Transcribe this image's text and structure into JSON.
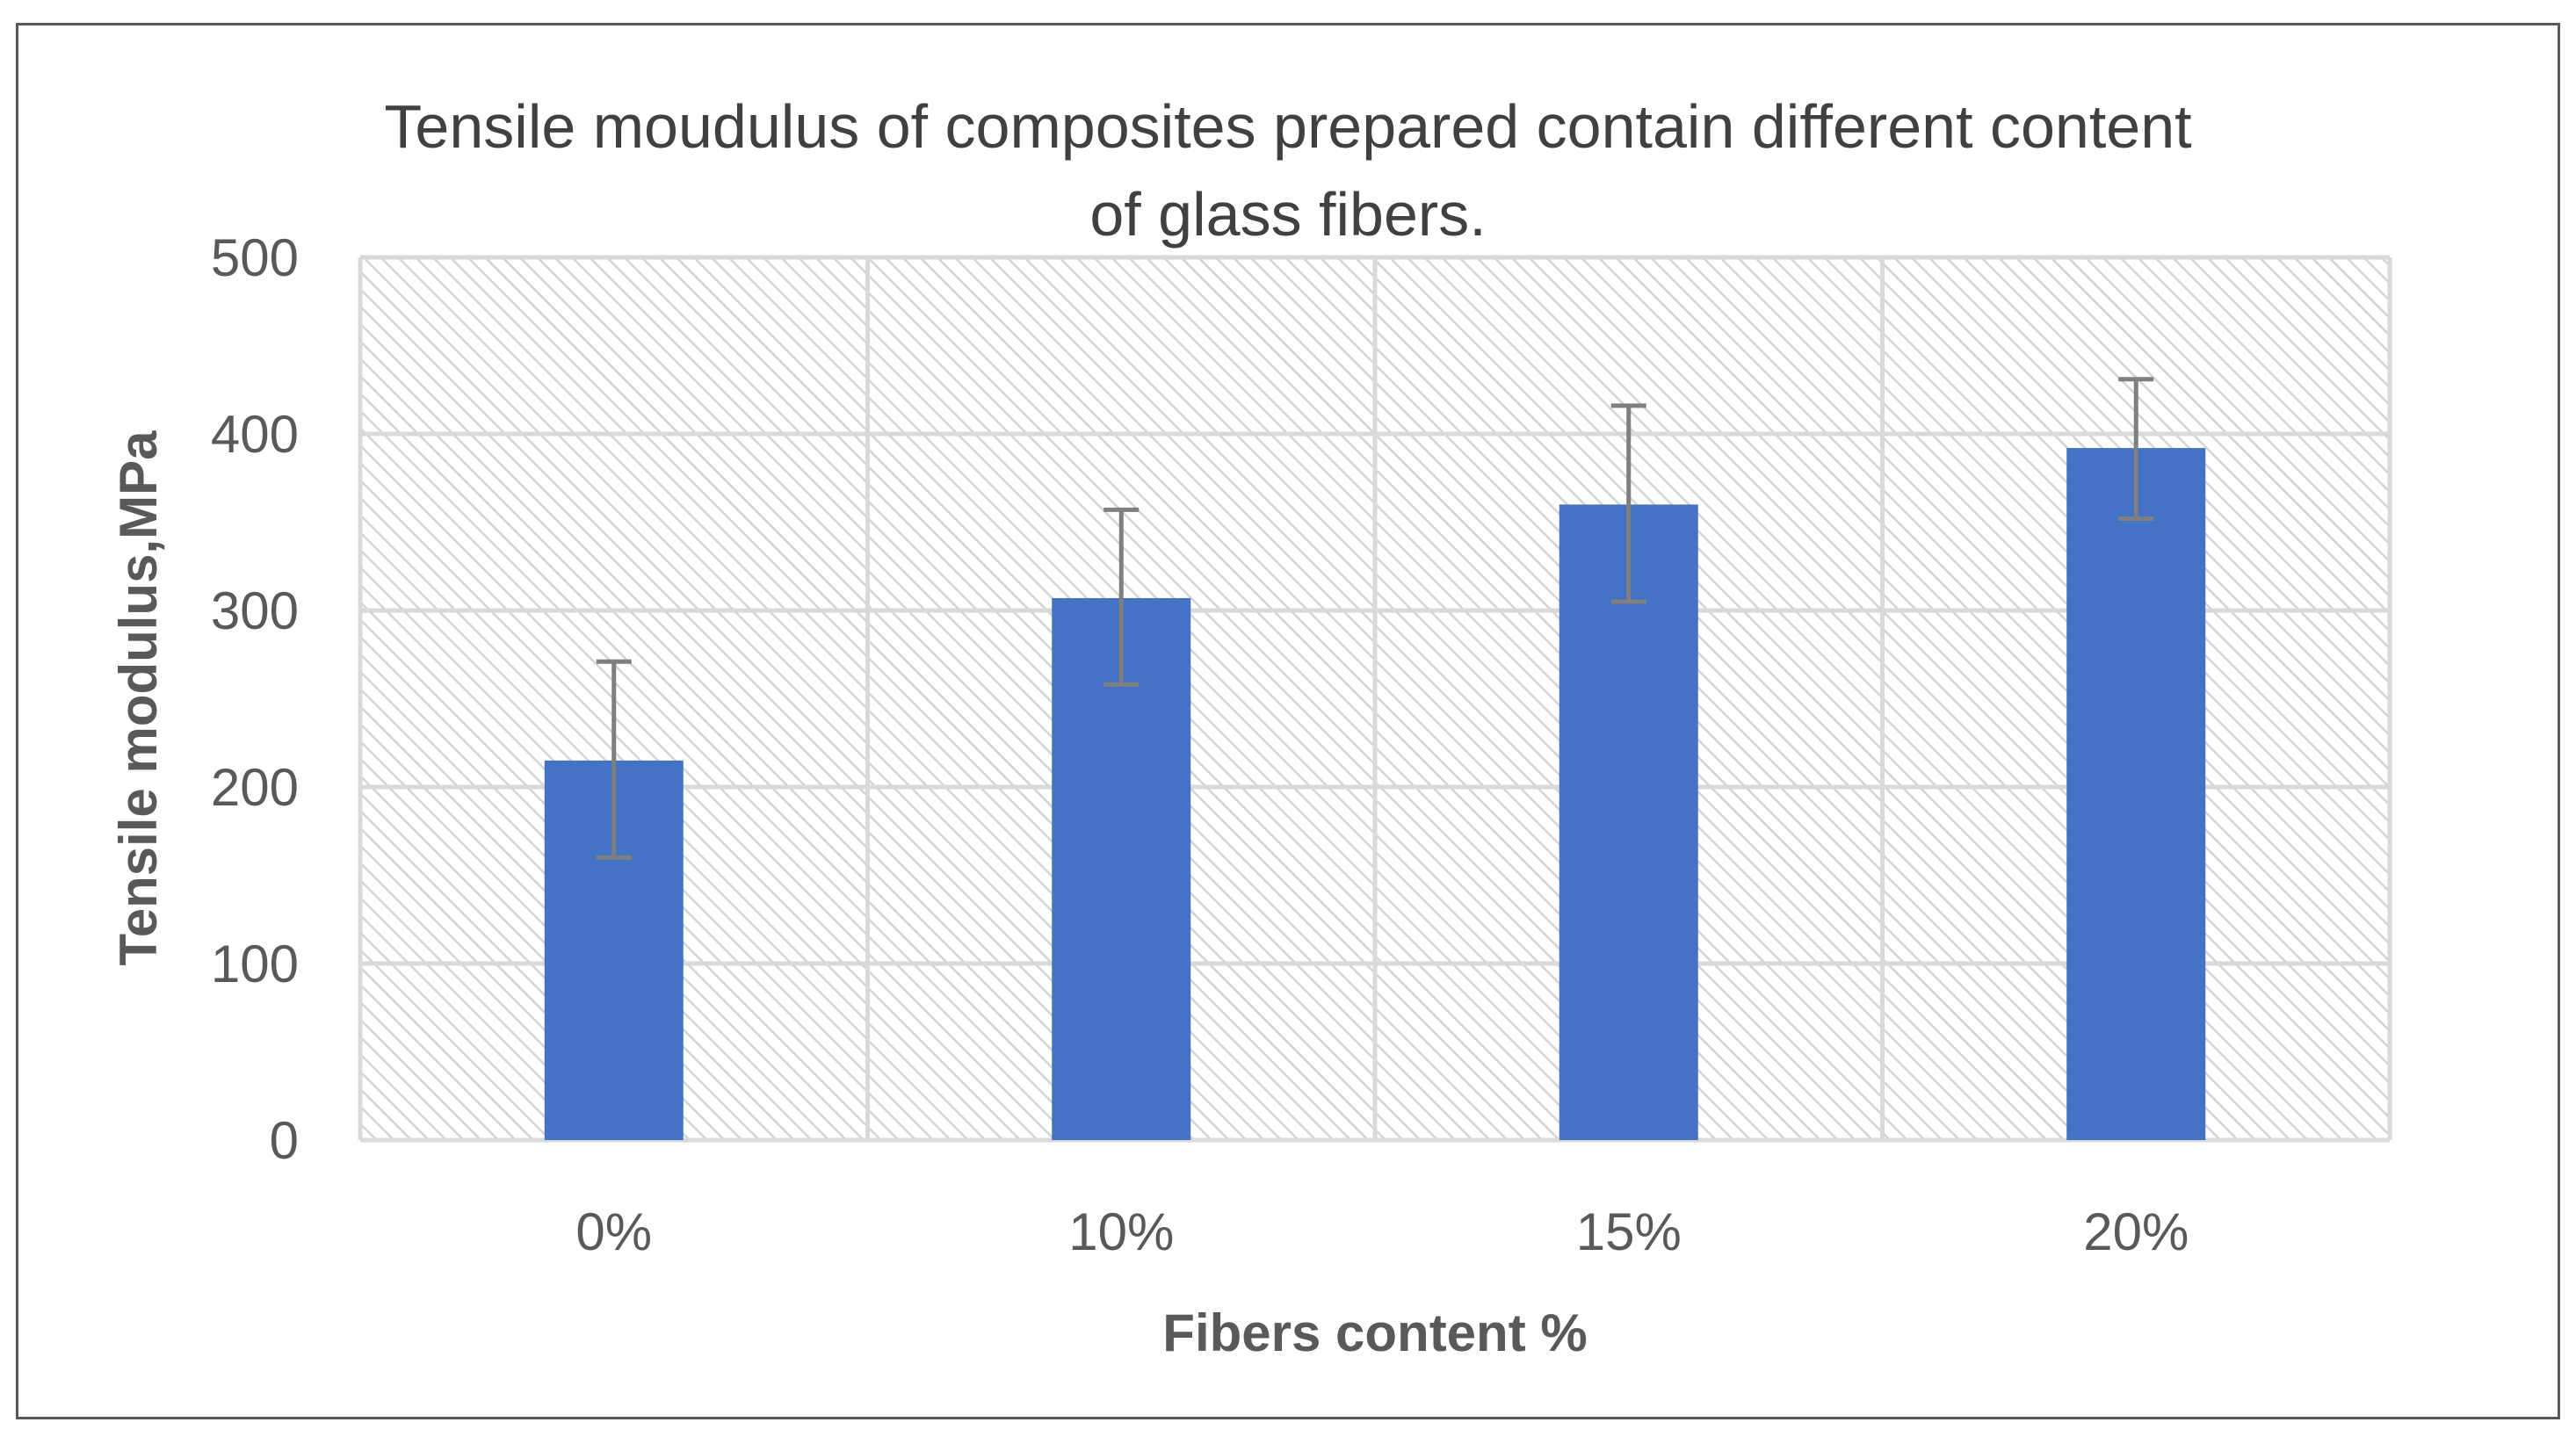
{
  "chart_data": {
    "type": "bar",
    "title": "Tensile moudulus  of composites prepared contain different content of glass fibers.",
    "title_lines": [
      "Tensile moudulus  of composites prepared contain different content",
      "of glass fibers."
    ],
    "xlabel": "Fibers content %",
    "ylabel": "Tensile modulus,MPa",
    "categories": [
      "0%",
      "10%",
      "15%",
      "20%"
    ],
    "series": [
      {
        "values": [
          215,
          307,
          360,
          392
        ],
        "error_upper": [
          271,
          357,
          416,
          431
        ],
        "error_lower": [
          160,
          258,
          305,
          352
        ],
        "color": "#4472C4"
      }
    ],
    "ylim": [
      0,
      500
    ],
    "yticks": [
      0,
      100,
      200,
      300,
      400,
      500
    ],
    "grid": true,
    "plot_background": "hatched",
    "legend": "none",
    "colors": {
      "bar": "#4472C4",
      "error_bar": "#7F7F7F",
      "grid": "#D9D9D9",
      "border": "#595959"
    }
  }
}
